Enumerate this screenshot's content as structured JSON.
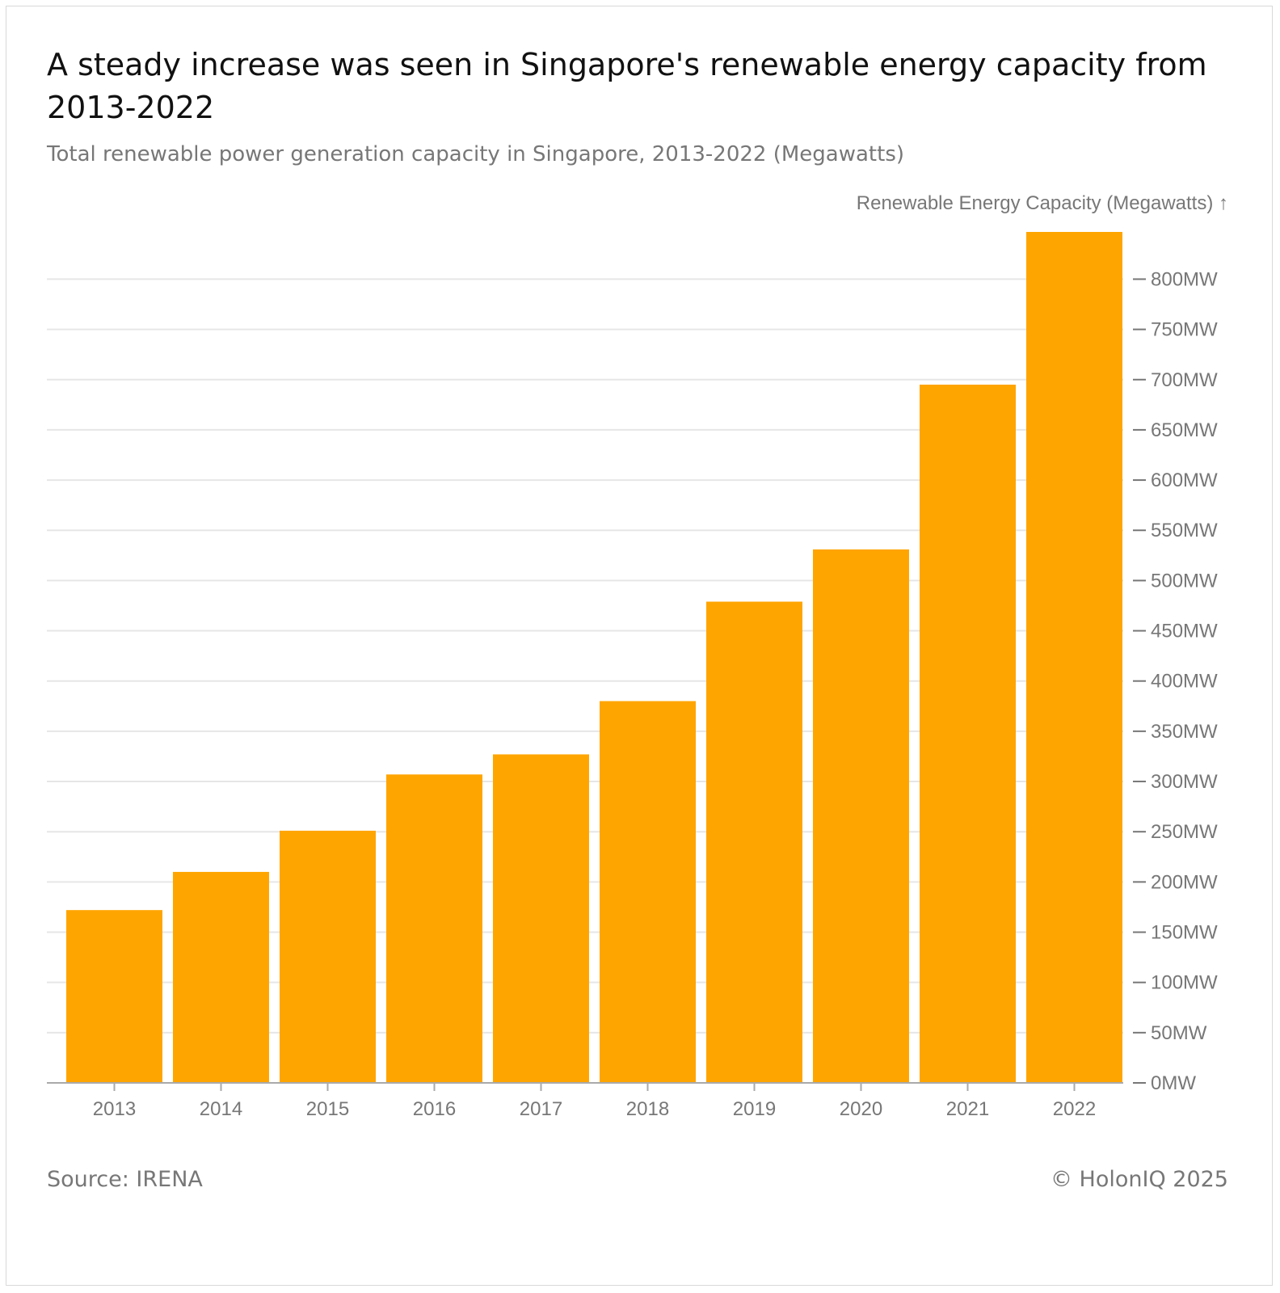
{
  "title": "A steady increase was seen in Singapore's renewable energy capacity from 2013-2022",
  "subtitle": "Total renewable power generation capacity in Singapore, 2013-2022 (Megawatts)",
  "footer": {
    "source": "Source: IRENA",
    "copyright": "© HolonIQ 2025"
  },
  "colors": {
    "bar": "#FFA500",
    "grid": "#e6e6e6",
    "axis": "#aaaaaa",
    "text_muted": "#777777"
  },
  "chart_data": {
    "type": "bar",
    "title": "A steady increase was seen in Singapore's renewable energy capacity from 2013-2022",
    "subtitle": "Total renewable power generation capacity in Singapore, 2013-2022 (Megawatts)",
    "ylabel": "Renewable Energy Capacity (Megawatts) ↑",
    "xlabel": "",
    "categories": [
      "2013",
      "2014",
      "2015",
      "2016",
      "2017",
      "2018",
      "2019",
      "2020",
      "2021",
      "2022"
    ],
    "values": [
      172,
      210,
      251,
      307,
      327,
      380,
      479,
      531,
      695,
      847
    ],
    "ylim": [
      0,
      847
    ],
    "y_ticks": [
      0,
      50,
      100,
      150,
      200,
      250,
      300,
      350,
      400,
      450,
      500,
      550,
      600,
      650,
      700,
      750,
      800
    ],
    "y_tick_labels": [
      "0MW",
      "50MW",
      "100MW",
      "150MW",
      "200MW",
      "250MW",
      "300MW",
      "350MW",
      "400MW",
      "450MW",
      "500MW",
      "550MW",
      "600MW",
      "650MW",
      "700MW",
      "750MW",
      "800MW"
    ],
    "y_axis_position": "right",
    "grid": true,
    "legend": "none"
  }
}
